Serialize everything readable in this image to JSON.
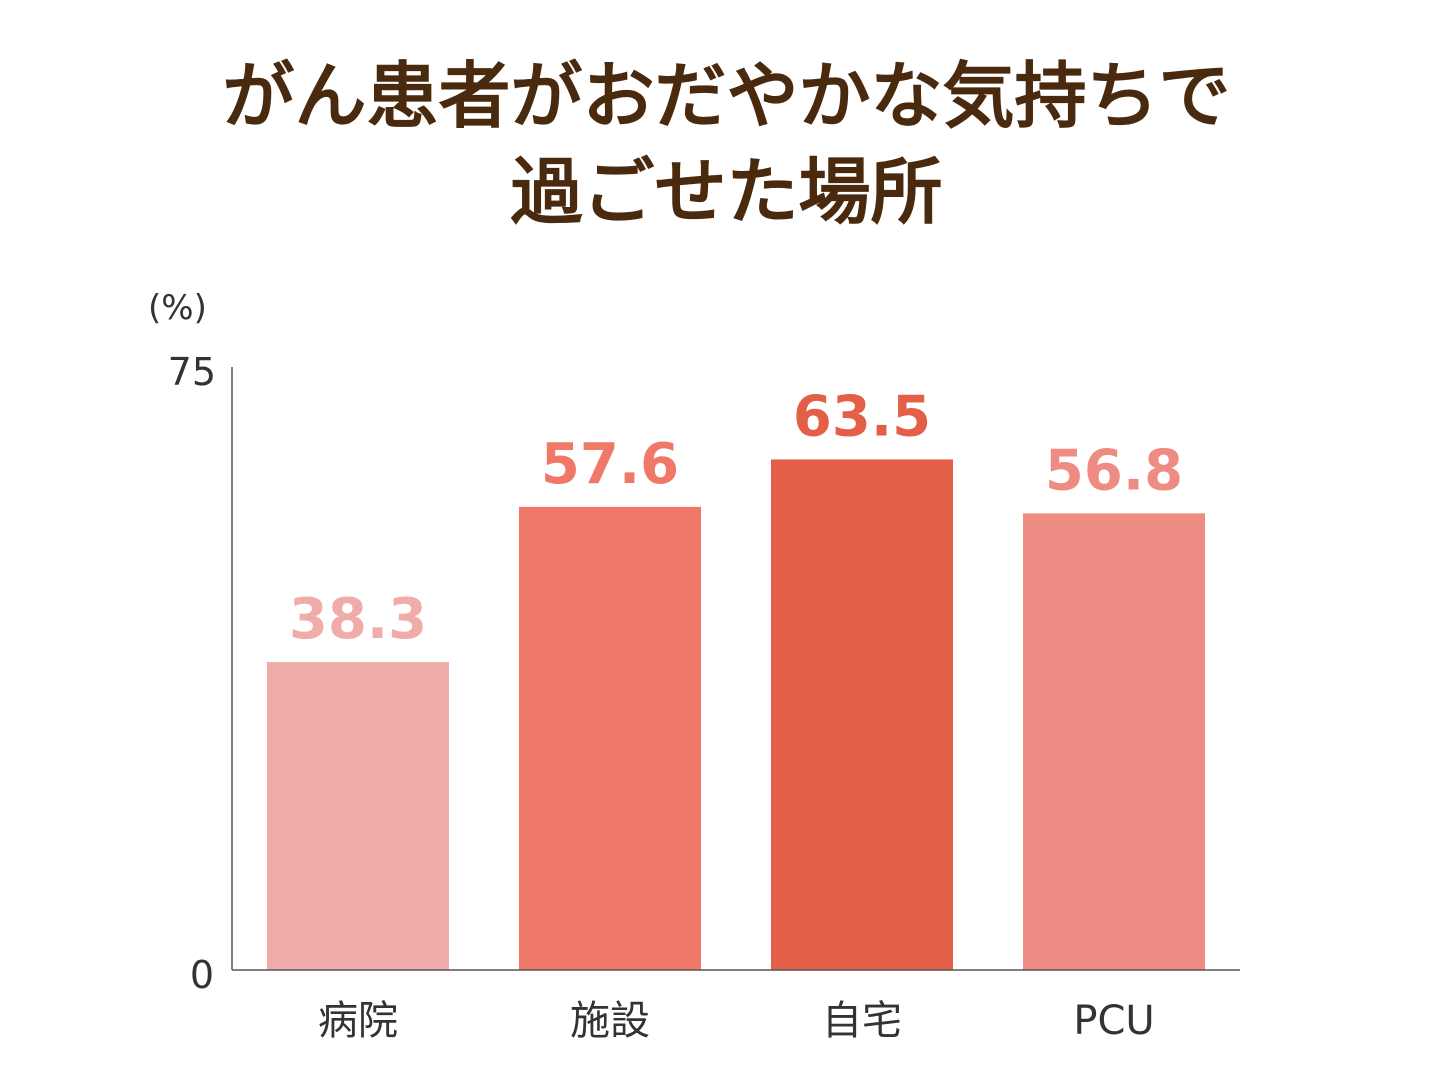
{
  "chart_data": {
    "type": "bar",
    "title_lines": [
      "がん患者がおだやかな気持ちで",
      "過ごせた場所"
    ],
    "ylabel": "(%)",
    "categories": [
      "病院",
      "施設",
      "自宅",
      "PCU"
    ],
    "values": [
      38.3,
      57.6,
      63.5,
      56.8
    ],
    "value_labels": [
      "38.3",
      "57.6",
      "63.5",
      "56.8"
    ],
    "colors": [
      "#EFACA9",
      "#F07868",
      "#E45F48",
      "#EE8C83"
    ],
    "ylim": [
      0,
      75
    ],
    "yticks": [
      "0",
      "75"
    ],
    "grid": false,
    "legend": "none"
  }
}
